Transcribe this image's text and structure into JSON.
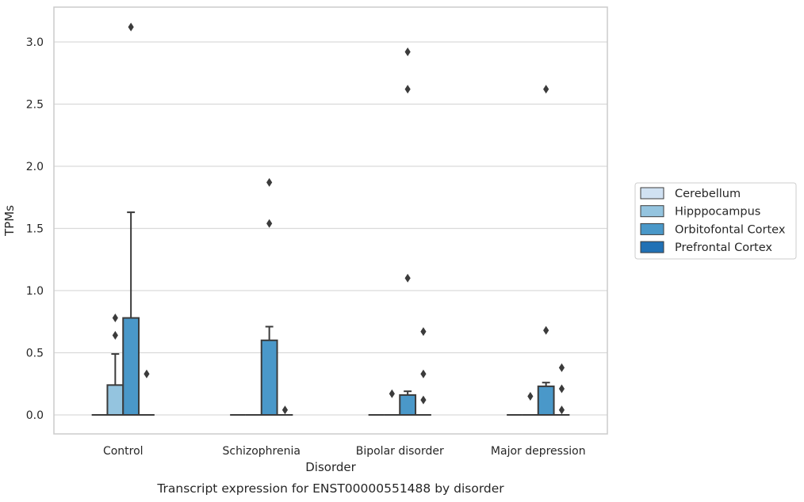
{
  "chart_data": {
    "type": "box",
    "caption": "Transcript expression for ENST00000551488 by disorder",
    "xlabel": "Disorder",
    "ylabel": "TPMs",
    "ylim": [
      -0.15,
      3.25
    ],
    "yticks": [
      "0.0",
      "0.5",
      "1.0",
      "1.5",
      "2.0",
      "2.5",
      "3.0"
    ],
    "ytick_values": [
      0,
      0.5,
      1.0,
      1.5,
      2.0,
      2.5,
      3.0
    ],
    "grid": true,
    "legend_position": "right",
    "categories": [
      "Control",
      "Schizophrenia",
      "Bipolar disorder",
      "Major depression"
    ],
    "series": [
      {
        "name": "Cerebellum",
        "color": "#d0e1f2",
        "boxes": [
          {
            "q1": 0,
            "median": 0,
            "q3": 0,
            "whislo": 0,
            "whishi": 0,
            "fliers": []
          },
          {
            "q1": 0,
            "median": 0,
            "q3": 0,
            "whislo": 0,
            "whishi": 0,
            "fliers": []
          },
          {
            "q1": 0,
            "median": 0,
            "q3": 0,
            "whislo": 0,
            "whishi": 0,
            "fliers": []
          },
          {
            "q1": 0,
            "median": 0,
            "q3": 0,
            "whislo": 0,
            "whishi": 0,
            "fliers": []
          }
        ]
      },
      {
        "name": "Hipppocampus",
        "color": "#94c4df",
        "boxes": [
          {
            "q1": 0,
            "median": 0,
            "q3": 0.24,
            "whislo": 0,
            "whishi": 0.49,
            "fliers": [
              0.64,
              0.78
            ]
          },
          {
            "q1": 0,
            "median": 0,
            "q3": 0,
            "whislo": 0,
            "whishi": 0,
            "fliers": []
          },
          {
            "q1": 0,
            "median": 0,
            "q3": 0,
            "whislo": 0,
            "whishi": 0,
            "fliers": [
              0.17
            ]
          },
          {
            "q1": 0,
            "median": 0,
            "q3": 0,
            "whislo": 0,
            "whishi": 0,
            "fliers": [
              0.15
            ]
          }
        ]
      },
      {
        "name": "Orbitofontal Cortex",
        "color": "#4a98c9",
        "boxes": [
          {
            "q1": 0,
            "median": 0,
            "q3": 0.78,
            "whislo": 0,
            "whishi": 1.63,
            "fliers": [
              3.12
            ]
          },
          {
            "q1": 0,
            "median": 0,
            "q3": 0.6,
            "whislo": 0,
            "whishi": 0.71,
            "fliers": [
              1.54,
              1.87
            ]
          },
          {
            "q1": 0,
            "median": 0,
            "q3": 0.16,
            "whislo": 0,
            "whishi": 0.19,
            "fliers": [
              1.1,
              2.62,
              2.92
            ]
          },
          {
            "q1": 0,
            "median": 0,
            "q3": 0.23,
            "whislo": 0,
            "whishi": 0.26,
            "fliers": [
              0.68,
              2.62
            ]
          }
        ]
      },
      {
        "name": "Prefrontal Cortex",
        "color": "#2171b5",
        "boxes": [
          {
            "q1": 0,
            "median": 0,
            "q3": 0,
            "whislo": 0,
            "whishi": 0,
            "fliers": [
              0.33
            ]
          },
          {
            "q1": 0,
            "median": 0,
            "q3": 0,
            "whislo": 0,
            "whishi": 0,
            "fliers": [
              0.04
            ]
          },
          {
            "q1": 0,
            "median": 0,
            "q3": 0,
            "whislo": 0,
            "whishi": 0,
            "fliers": [
              0.12,
              0.33,
              0.67
            ]
          },
          {
            "q1": 0,
            "median": 0,
            "q3": 0,
            "whislo": 0,
            "whishi": 0,
            "fliers": [
              0.04,
              0.21,
              0.38
            ]
          }
        ]
      }
    ]
  }
}
